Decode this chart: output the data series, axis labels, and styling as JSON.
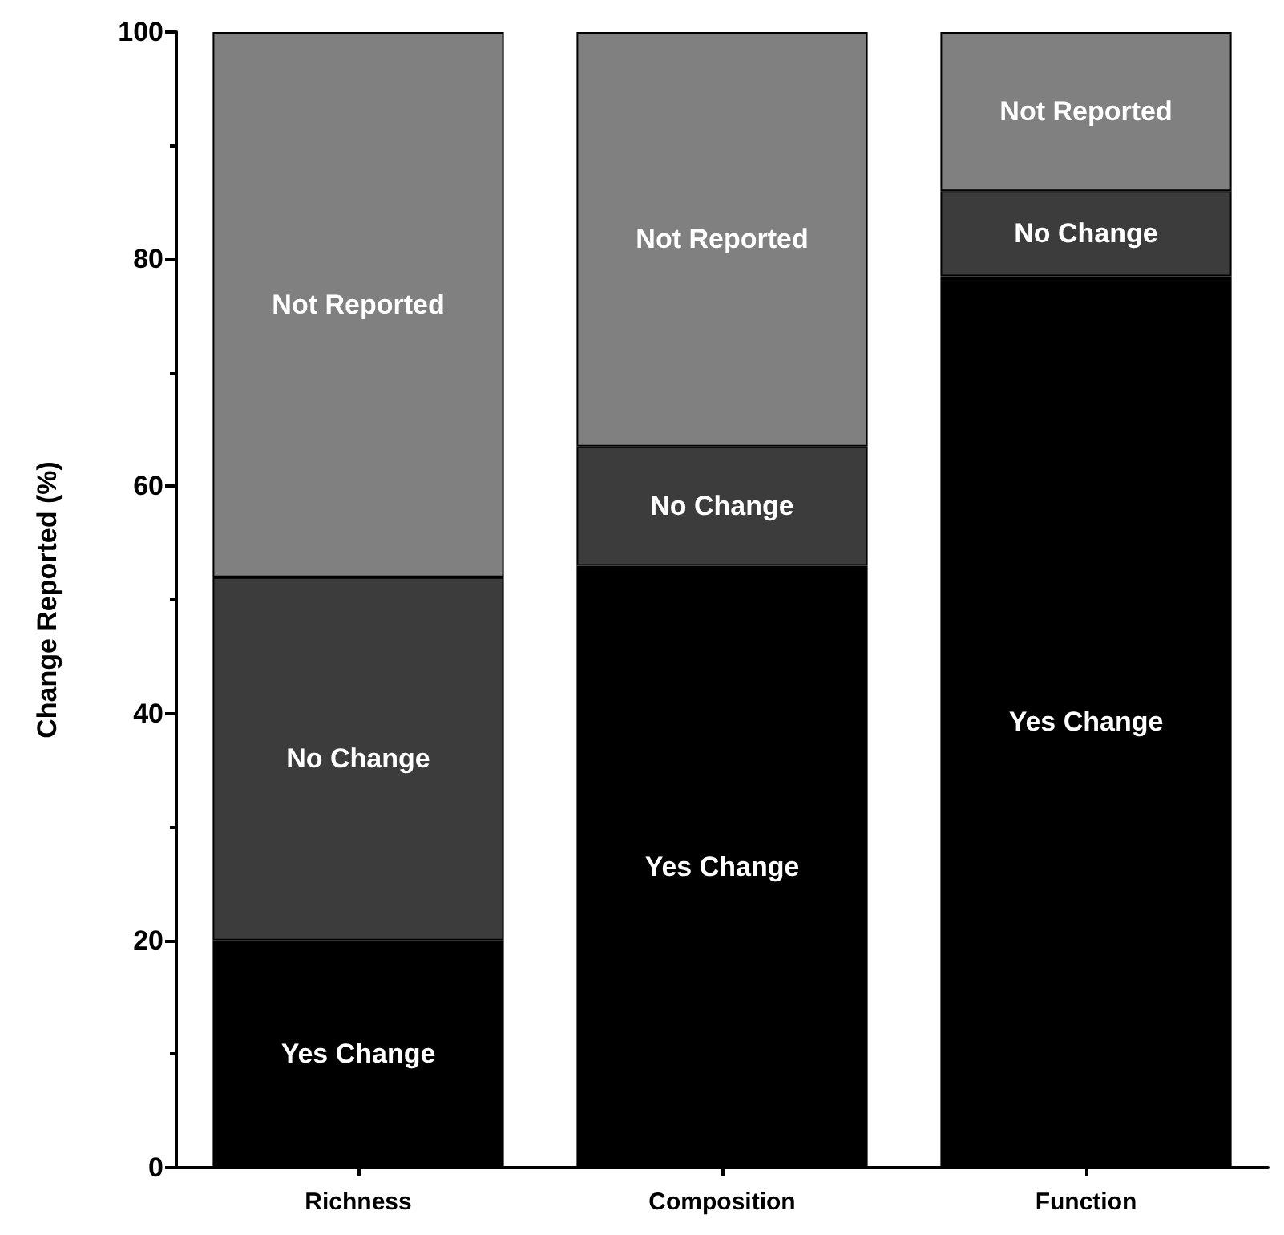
{
  "chart_data": {
    "type": "bar",
    "stacked": true,
    "ylabel": "Change Reported (%)",
    "categories": [
      "Richness",
      "Composition",
      "Function"
    ],
    "series": [
      {
        "name": "Yes Change",
        "color": "#000000",
        "values": [
          20,
          53,
          78.5
        ]
      },
      {
        "name": "No Change",
        "color": "#3c3c3c",
        "values": [
          32,
          10.5,
          7.5
        ]
      },
      {
        "name": "Not Reported",
        "color": "#808080",
        "values": [
          48,
          36.5,
          14
        ]
      }
    ],
    "ylim": [
      0,
      100
    ],
    "yticks": [
      0,
      20,
      40,
      60,
      80,
      100
    ],
    "grid": false,
    "legend": false
  }
}
